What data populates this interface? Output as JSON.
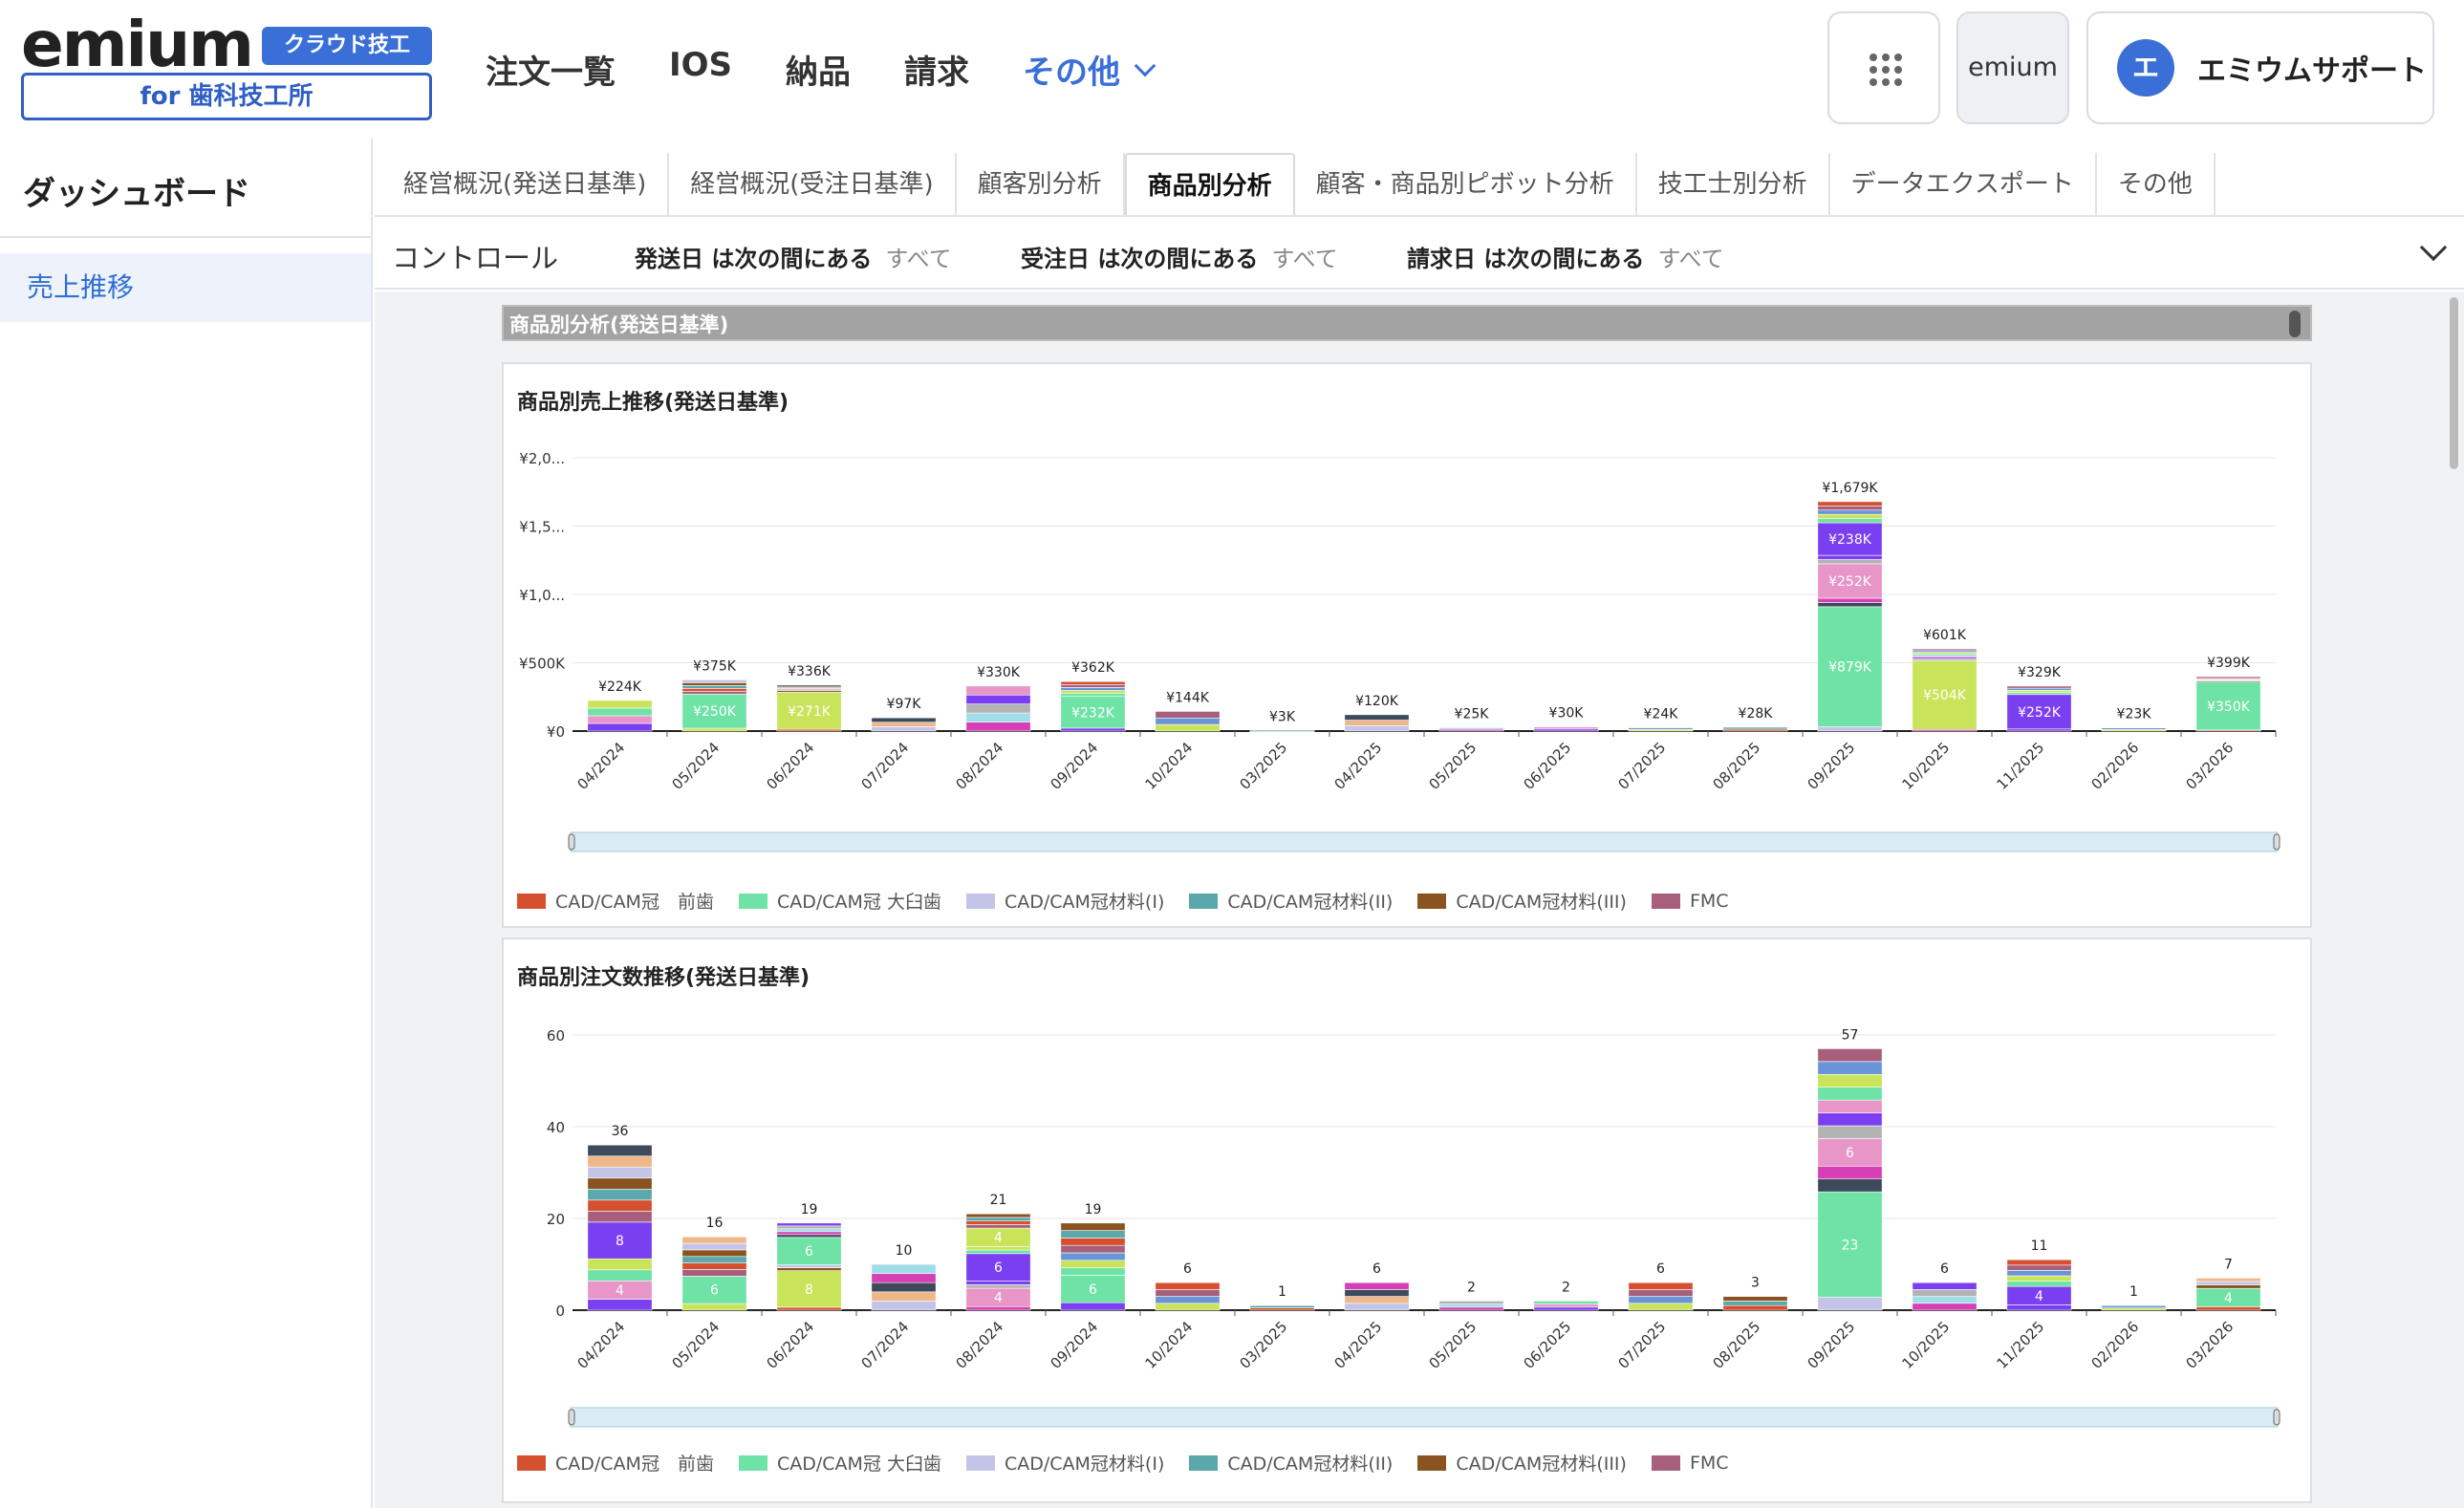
{
  "header": {
    "logo_word": "emium",
    "logo_badge": "クラウド技工",
    "logo_sub": "for 歯科技工所",
    "nav": [
      "注文一覧",
      "IOS",
      "納品",
      "請求"
    ],
    "nav_more": "その他",
    "emium_button": "emium",
    "user_initial": "エ",
    "user_name": "エミウムサポート"
  },
  "sidebar": {
    "title": "ダッシュボード",
    "items": [
      "売上推移"
    ]
  },
  "tabs": [
    "経営概況(発送日基準)",
    "経営概況(受注日基準)",
    "顧客別分析",
    "商品別分析",
    "顧客・商品別ピボット分析",
    "技工士別分析",
    "データエクスポート",
    "その他"
  ],
  "active_tab": "商品別分析",
  "control": {
    "label": "コントロール",
    "filters": [
      {
        "key": "発送日 は次の間にある",
        "value": "すべて"
      },
      {
        "key": "受注日 は次の間にある",
        "value": "すべて"
      },
      {
        "key": "請求日 は次の間にある",
        "value": "すべて"
      }
    ]
  },
  "section_title": "商品別分析(発送日基準)",
  "legend": [
    {
      "name": "CAD/CAM冠　前歯",
      "color": "#d4502e"
    },
    {
      "name": "CAD/CAM冠 大臼歯",
      "color": "#6fe3a6"
    },
    {
      "name": "CAD/CAM冠材料(I)",
      "color": "#c4c4e8"
    },
    {
      "name": "CAD/CAM冠材料(II)",
      "color": "#5aa8ab"
    },
    {
      "name": "CAD/CAM冠材料(III)",
      "color": "#8a5420"
    },
    {
      "name": "FMC",
      "color": "#a85f7c"
    }
  ],
  "chart_data": [
    {
      "type": "bar",
      "title": "商品別売上推移(発送日基準)",
      "stacked": true,
      "categories": [
        "04/2024",
        "05/2024",
        "06/2024",
        "07/2024",
        "08/2024",
        "09/2024",
        "10/2024",
        "03/2025",
        "04/2025",
        "05/2025",
        "06/2025",
        "07/2025",
        "08/2025",
        "09/2025",
        "10/2025",
        "11/2025",
        "02/2026",
        "03/2026"
      ],
      "totals": [
        224000,
        375000,
        336000,
        97000,
        330000,
        362000,
        144000,
        3000,
        120000,
        25000,
        30000,
        24000,
        28000,
        1679000,
        601000,
        329000,
        23000,
        399000
      ],
      "total_labels": [
        "¥224K",
        "¥375K",
        "¥336K",
        "¥97K",
        "¥330K",
        "¥362K",
        "¥144K",
        "¥3K",
        "¥120K",
        "¥25K",
        "¥30K",
        "¥24K",
        "¥28K",
        "¥1,679K",
        "¥601K",
        "¥329K",
        "¥23K",
        "¥399K"
      ],
      "segment_labels": [
        {
          "category": "05/2024",
          "label": "¥250K",
          "value": 250000
        },
        {
          "category": "06/2024",
          "label": "¥271K",
          "value": 271000
        },
        {
          "category": "09/2024",
          "label": "¥232K",
          "value": 232000
        },
        {
          "category": "09/2025",
          "label": "¥879K",
          "value": 879000
        },
        {
          "category": "09/2025",
          "label": "¥252K",
          "value": 252000
        },
        {
          "category": "09/2025",
          "label": "¥238K",
          "value": 238000
        },
        {
          "category": "10/2025",
          "label": "¥504K",
          "value": 504000
        },
        {
          "category": "11/2025",
          "label": "¥252K",
          "value": 252000
        },
        {
          "category": "03/2026",
          "label": "¥350K",
          "value": 350000
        }
      ],
      "y_ticks": [
        "¥0",
        "¥500K",
        "¥1,0...",
        "¥1,5...",
        "¥2,0..."
      ],
      "ylim": [
        0,
        2000000
      ],
      "grid": true,
      "legend_position": "bottom"
    },
    {
      "type": "bar",
      "title": "商品別注文数推移(発送日基準)",
      "stacked": true,
      "categories": [
        "04/2024",
        "05/2024",
        "06/2024",
        "07/2024",
        "08/2024",
        "09/2024",
        "10/2024",
        "03/2025",
        "04/2025",
        "05/2025",
        "06/2025",
        "07/2025",
        "08/2025",
        "09/2025",
        "10/2025",
        "11/2025",
        "02/2026",
        "03/2026"
      ],
      "totals": [
        36,
        16,
        19,
        10,
        21,
        19,
        6,
        1,
        6,
        2,
        2,
        6,
        3,
        57,
        6,
        11,
        1,
        7
      ],
      "segment_labels": [
        {
          "category": "04/2024",
          "label": "4",
          "value": 4
        },
        {
          "category": "04/2024",
          "label": "8",
          "value": 8
        },
        {
          "category": "05/2024",
          "label": "6",
          "value": 6
        },
        {
          "category": "06/2024",
          "label": "8",
          "value": 8
        },
        {
          "category": "06/2024",
          "label": "6",
          "value": 6
        },
        {
          "category": "08/2024",
          "label": "4",
          "value": 4
        },
        {
          "category": "08/2024",
          "label": "6",
          "value": 6
        },
        {
          "category": "08/2024",
          "label": "4",
          "value": 4
        },
        {
          "category": "09/2024",
          "label": "6",
          "value": 6
        },
        {
          "category": "09/2025",
          "label": "23",
          "value": 23
        },
        {
          "category": "09/2025",
          "label": "6",
          "value": 6
        },
        {
          "category": "11/2025",
          "label": "4",
          "value": 4
        },
        {
          "category": "03/2026",
          "label": "4",
          "value": 4
        }
      ],
      "y_ticks": [
        "0",
        "20",
        "40",
        "60"
      ],
      "ylim": [
        0,
        60
      ],
      "grid": true,
      "legend_position": "bottom"
    }
  ]
}
